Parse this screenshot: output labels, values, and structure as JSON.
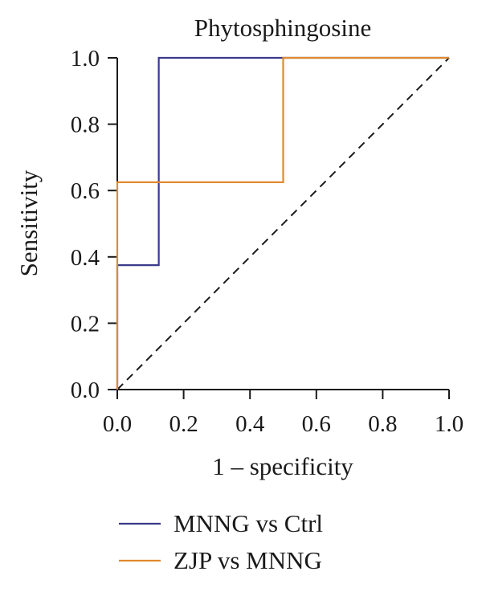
{
  "chart_data": {
    "type": "line",
    "title": "Phytosphingosine",
    "xlabel": "1 – specificity",
    "ylabel": "Sensitivity",
    "xlim": [
      0,
      1
    ],
    "ylim": [
      0,
      1
    ],
    "xticks": [
      "0.0",
      "0.2",
      "0.4",
      "0.6",
      "0.8",
      "1.0"
    ],
    "yticks": [
      "0.0",
      "0.2",
      "0.4",
      "0.6",
      "0.8",
      "1.0"
    ],
    "grid": false,
    "legend_position": "bottom",
    "reference_line": {
      "style": "dashed",
      "x": [
        0,
        1
      ],
      "y": [
        0,
        1
      ],
      "color": "#1a1a1a"
    },
    "series": [
      {
        "name": "MNNG vs Ctrl",
        "color": "#3a3a8c",
        "x": [
          0,
          0,
          0.125,
          0.125,
          1.0
        ],
        "y": [
          0,
          0.375,
          0.375,
          1.0,
          1.0
        ]
      },
      {
        "name": "ZJP vs MNNG",
        "color": "#e08a2e",
        "x": [
          0,
          0,
          0.5,
          0.5,
          1.0
        ],
        "y": [
          0,
          0.625,
          0.625,
          1.0,
          1.0
        ]
      }
    ]
  }
}
